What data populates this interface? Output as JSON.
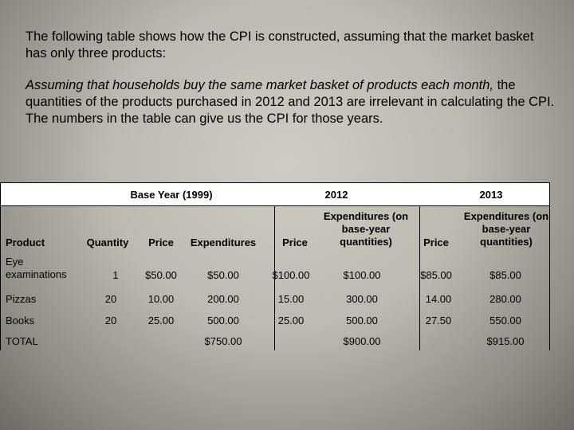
{
  "intro_text": "The following table shows how the CPI is constructed, assuming that the market basket has only three products:",
  "assumption": {
    "italic": "Assuming that households buy the same market basket of products each month,",
    "normal": " the quantities of the products purchased in 2012 and 2013 are irrelevant in calculating the CPI. The numbers in the table can give us the CPI for those years."
  },
  "table": {
    "group_headers": [
      "Base Year (1999)",
      "2012",
      "2013"
    ],
    "columns": [
      "Product",
      "Quantity",
      "Price",
      "Expenditures",
      "Price",
      "Expenditures (on base-year quantities)",
      "Price",
      "Expenditures (on base-year quantities)"
    ],
    "rows": [
      [
        "Eye examinations",
        "1",
        "$50.00",
        "$50.00",
        "$100.00",
        "$100.00",
        "$85.00",
        "$85.00"
      ],
      [
        "Pizzas",
        "20",
        "10.00",
        "200.00",
        "15.00",
        "300.00",
        "14.00",
        "280.00"
      ],
      [
        "Books",
        "20",
        "25.00",
        "500.00",
        "25.00",
        "500.00",
        "27.50",
        "550.00"
      ]
    ],
    "total_row": [
      "TOTAL",
      "",
      "",
      "$750.00",
      "",
      "$900.00",
      "",
      "$915.00"
    ]
  }
}
